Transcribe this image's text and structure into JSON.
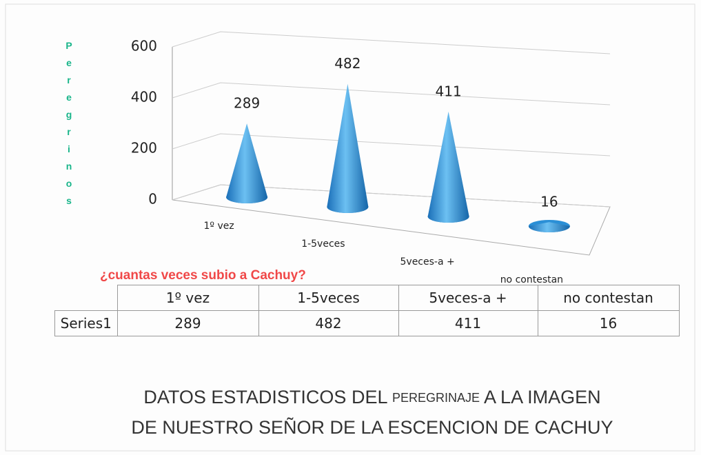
{
  "chart_data": {
    "type": "cone",
    "y_axis_label": "Peregrinos",
    "x_axis_label": "¿cuantas veces subio a  Cachuy?",
    "categories": [
      "1º vez",
      "1-5veces",
      "5veces-a +",
      "no contestan"
    ],
    "series": [
      {
        "name": "Series1",
        "color": "#2a8fd6",
        "values": [
          289,
          482,
          411,
          16
        ]
      }
    ],
    "ylim": [
      0,
      600
    ],
    "yticks": [
      0,
      200,
      400,
      600
    ],
    "grid": true,
    "title": [
      "DATOS ESTADISTICOS DEL",
      "PEREGRINAJE",
      "A  LA IMAGEN",
      "DE NUESTRO SEÑOR DE LA ESCENCION DE CACHUY"
    ]
  }
}
